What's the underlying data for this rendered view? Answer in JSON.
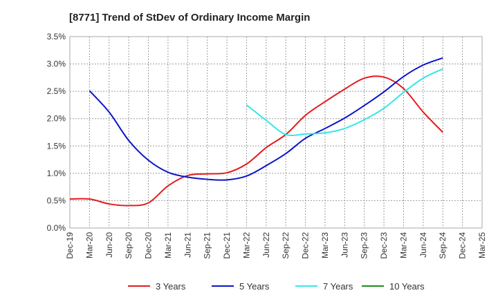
{
  "chart_data": {
    "type": "line",
    "title": "[8771]  Trend of StDev of Ordinary Income Margin",
    "xlabel": "",
    "ylabel": "",
    "x": [
      "Dec-19",
      "Mar-20",
      "Jun-20",
      "Sep-20",
      "Dec-20",
      "Mar-21",
      "Jun-21",
      "Sep-21",
      "Dec-21",
      "Mar-22",
      "Jun-22",
      "Sep-22",
      "Dec-22",
      "Mar-23",
      "Jun-23",
      "Sep-23",
      "Dec-23",
      "Mar-24",
      "Jun-24",
      "Sep-24",
      "Dec-24",
      "Mar-25"
    ],
    "y_ticks": [
      "0.0%",
      "0.5%",
      "1.0%",
      "1.5%",
      "2.0%",
      "2.5%",
      "3.0%",
      "3.5%"
    ],
    "ylim": [
      0,
      3.5
    ],
    "y_unit": "%",
    "grid": true,
    "legend_position": "bottom",
    "series": [
      {
        "name": "3 Years",
        "color": "#e31a1c",
        "values": [
          0.53,
          0.53,
          0.44,
          0.41,
          0.46,
          0.77,
          0.96,
          0.99,
          1.01,
          1.17,
          1.47,
          1.71,
          2.06,
          2.31,
          2.54,
          2.74,
          2.76,
          2.55,
          2.12,
          1.75,
          null,
          null
        ]
      },
      {
        "name": "5 Years",
        "color": "#0a14c8",
        "values": [
          null,
          2.51,
          2.12,
          1.6,
          1.24,
          1.02,
          0.93,
          0.89,
          0.88,
          0.95,
          1.14,
          1.36,
          1.64,
          1.82,
          2.01,
          2.24,
          2.49,
          2.77,
          2.98,
          3.11,
          null,
          null
        ]
      },
      {
        "name": "7 Years",
        "color": "#33e6e6",
        "values": [
          null,
          null,
          null,
          null,
          null,
          null,
          null,
          null,
          null,
          2.25,
          1.97,
          1.71,
          1.72,
          1.74,
          1.82,
          1.98,
          2.19,
          2.48,
          2.74,
          2.91,
          null,
          null
        ]
      },
      {
        "name": "10 Years",
        "color": "#1a8c1a",
        "values": [
          null,
          null,
          null,
          null,
          null,
          null,
          null,
          null,
          null,
          null,
          null,
          null,
          null,
          null,
          null,
          null,
          null,
          null,
          null,
          null,
          null,
          null
        ]
      }
    ]
  }
}
